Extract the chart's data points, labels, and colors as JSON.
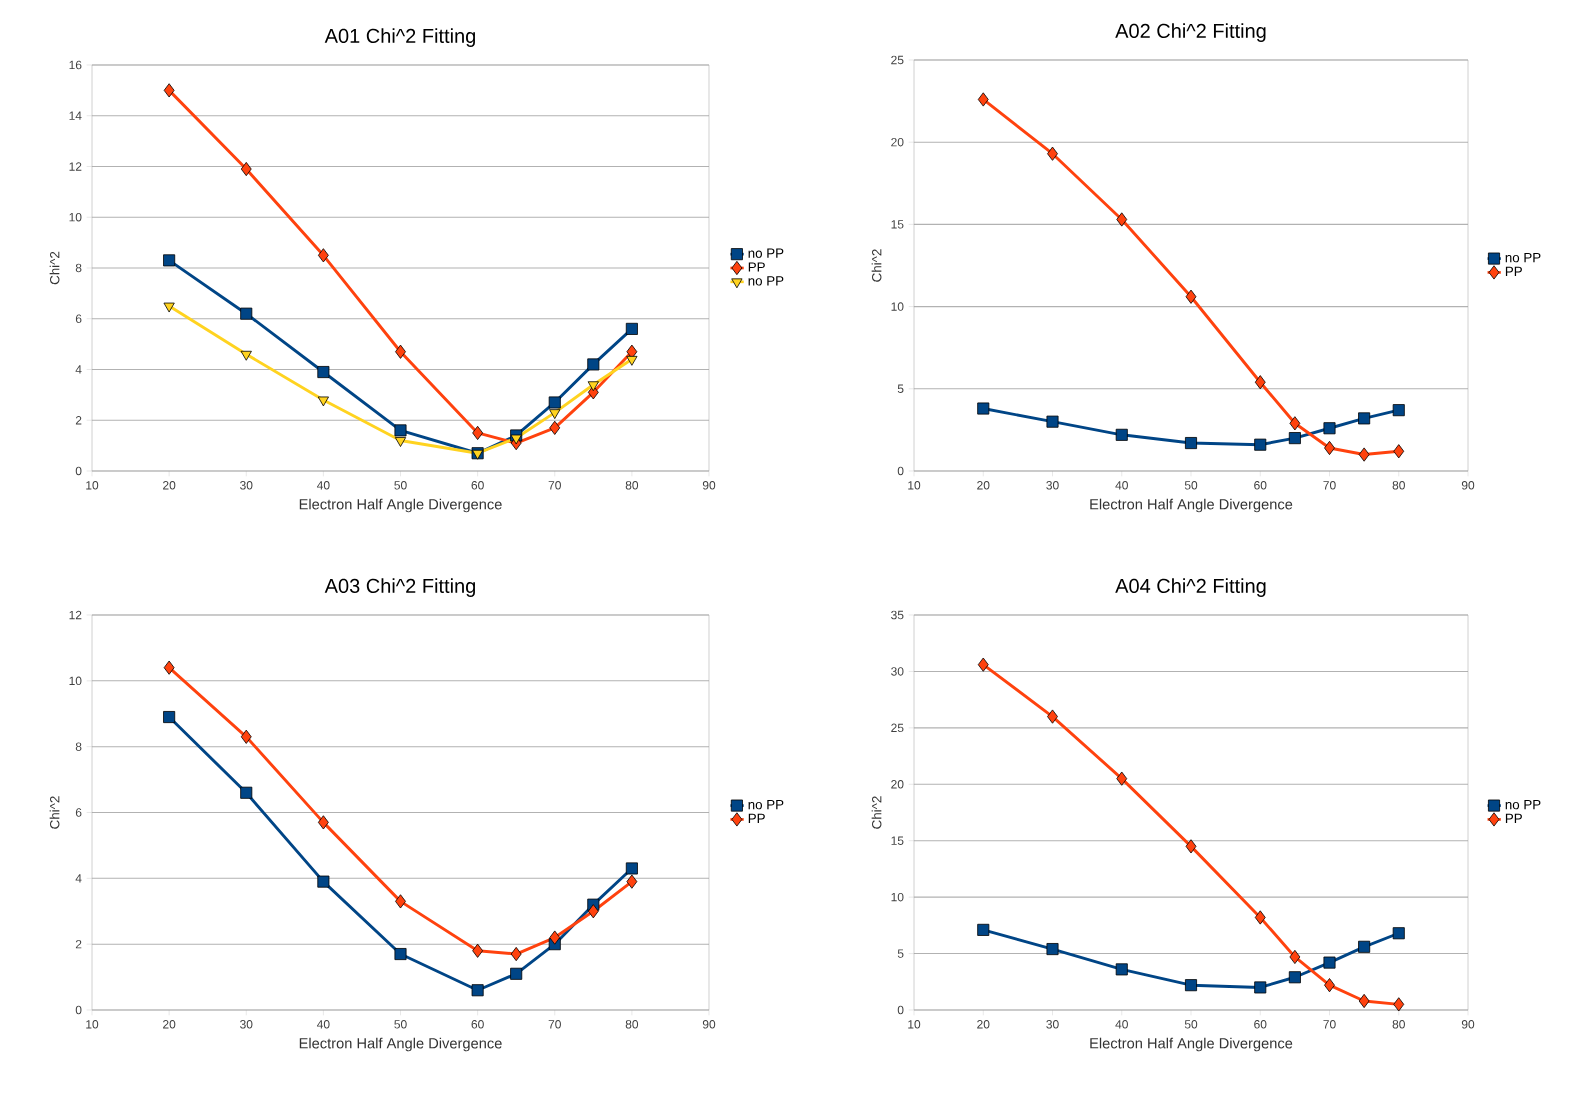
{
  "chart_data": [
    {
      "type": "line",
      "title": "A01 Chi^2 Fitting",
      "xlabel": "Electron Half Angle Divergence",
      "ylabel": "Chi^2",
      "xlim": [
        10,
        90
      ],
      "xticks": [
        10,
        20,
        30,
        40,
        50,
        60,
        70,
        80,
        90
      ],
      "ylim": [
        0,
        16
      ],
      "yticks": [
        0,
        2,
        4,
        6,
        8,
        10,
        12,
        14,
        16
      ],
      "grid": "y",
      "legend": "right",
      "line_style": "solid",
      "x": [
        20,
        30,
        40,
        50,
        60,
        65,
        70,
        75,
        80
      ],
      "series": [
        {
          "name": "no PP",
          "color": "#004586",
          "marker": "square",
          "values": [
            8.3,
            6.2,
            3.9,
            1.6,
            0.7,
            1.4,
            2.7,
            4.2,
            5.6
          ]
        },
        {
          "name": "PP",
          "color": "#ff420e",
          "marker": "diamond",
          "values": [
            15.0,
            11.9,
            8.5,
            4.7,
            1.5,
            1.1,
            1.7,
            3.1,
            4.7
          ]
        },
        {
          "name": "no PP",
          "color": "#ffd320",
          "marker": "triangle",
          "values": [
            6.5,
            4.6,
            2.8,
            1.2,
            0.7,
            1.3,
            2.3,
            3.4,
            4.4
          ]
        }
      ]
    },
    {
      "type": "line",
      "title": "A02 Chi^2 Fitting",
      "xlabel": "Electron Half Angle Divergence",
      "ylabel": "Chi^2",
      "xlim": [
        10,
        90
      ],
      "xticks": [
        10,
        20,
        30,
        40,
        50,
        60,
        70,
        80,
        90
      ],
      "ylim": [
        0,
        25
      ],
      "yticks": [
        0,
        5,
        10,
        15,
        20,
        25
      ],
      "grid": "y",
      "legend": "right",
      "line_style": "solid",
      "x": [
        20,
        30,
        40,
        50,
        60,
        65,
        70,
        75,
        80
      ],
      "series": [
        {
          "name": "no PP",
          "color": "#004586",
          "marker": "square",
          "values": [
            3.8,
            3.0,
            2.2,
            1.7,
            1.6,
            2.0,
            2.6,
            3.2,
            3.7
          ]
        },
        {
          "name": "PP",
          "color": "#ff420e",
          "marker": "diamond",
          "values": [
            22.6,
            19.3,
            15.3,
            10.6,
            5.4,
            2.9,
            1.4,
            1.0,
            1.2
          ]
        }
      ]
    },
    {
      "type": "line",
      "title": "A03 Chi^2 Fitting",
      "xlabel": "Electron Half Angle Divergence",
      "ylabel": "Chi^2",
      "xlim": [
        10,
        90
      ],
      "xticks": [
        10,
        20,
        30,
        40,
        50,
        60,
        70,
        80,
        90
      ],
      "ylim": [
        0,
        12
      ],
      "yticks": [
        0,
        2,
        4,
        6,
        8,
        10,
        12
      ],
      "grid": "y",
      "legend": "right",
      "line_style": "solid",
      "x": [
        20,
        30,
        40,
        50,
        60,
        65,
        70,
        75,
        80
      ],
      "series": [
        {
          "name": "no PP",
          "color": "#004586",
          "marker": "square",
          "values": [
            8.9,
            6.6,
            3.9,
            1.7,
            0.6,
            1.1,
            2.0,
            3.2,
            4.3
          ]
        },
        {
          "name": "PP",
          "color": "#ff420e",
          "marker": "diamond",
          "values": [
            10.4,
            8.3,
            5.7,
            3.3,
            1.8,
            1.7,
            2.2,
            3.0,
            3.9
          ]
        }
      ]
    },
    {
      "type": "line",
      "title": "A04 Chi^2 Fitting",
      "xlabel": "Electron Half Angle Divergence",
      "ylabel": "Chi^2",
      "xlim": [
        10,
        90
      ],
      "xticks": [
        10,
        20,
        30,
        40,
        50,
        60,
        70,
        80,
        90
      ],
      "ylim": [
        0,
        35
      ],
      "yticks": [
        0,
        5,
        10,
        15,
        20,
        25,
        30,
        35
      ],
      "grid": "y",
      "legend": "right",
      "line_style": "solid",
      "x": [
        20,
        30,
        40,
        50,
        60,
        65,
        70,
        75,
        80
      ],
      "series": [
        {
          "name": "no PP",
          "color": "#004586",
          "marker": "square",
          "values": [
            7.1,
            5.4,
            3.6,
            2.2,
            2.0,
            2.9,
            4.2,
            5.6,
            6.8
          ]
        },
        {
          "name": "PP",
          "color": "#ff420e",
          "marker": "diamond",
          "values": [
            30.6,
            26.0,
            20.5,
            14.5,
            8.2,
            4.7,
            2.2,
            0.8,
            0.5
          ]
        }
      ]
    }
  ]
}
